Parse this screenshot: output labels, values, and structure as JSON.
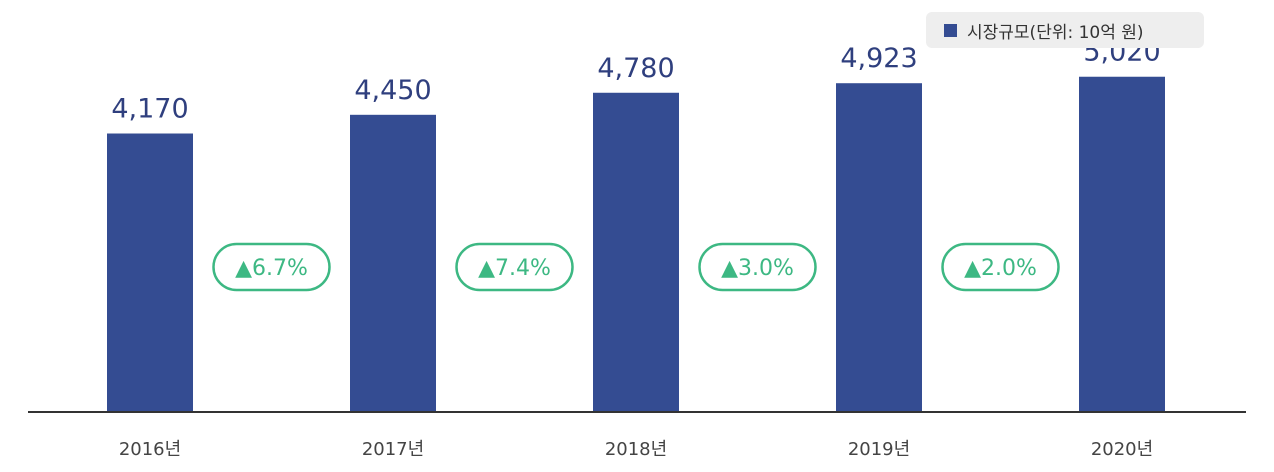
{
  "legend": {
    "label": "시장규모(단위: 10억 원)"
  },
  "colors": {
    "bar": "#344c92",
    "growth": "#3db883",
    "axis": "#333333"
  },
  "chart_data": {
    "type": "bar",
    "categories": [
      "2016년",
      "2017년",
      "2018년",
      "2019년",
      "2020년"
    ],
    "series": [
      {
        "name": "시장규모(단위: 10억 원)",
        "values": [
          4170,
          4450,
          4780,
          4923,
          5020
        ]
      }
    ],
    "value_labels": [
      "4,170",
      "4,450",
      "4,780",
      "4,923",
      "5,020"
    ],
    "growth_labels": [
      "▲6.7%",
      "▲7.4%",
      "▲3.0%",
      "▲2.0%"
    ],
    "ylim": [
      0,
      5600
    ],
    "grid": false,
    "legend_position": "top-right"
  }
}
